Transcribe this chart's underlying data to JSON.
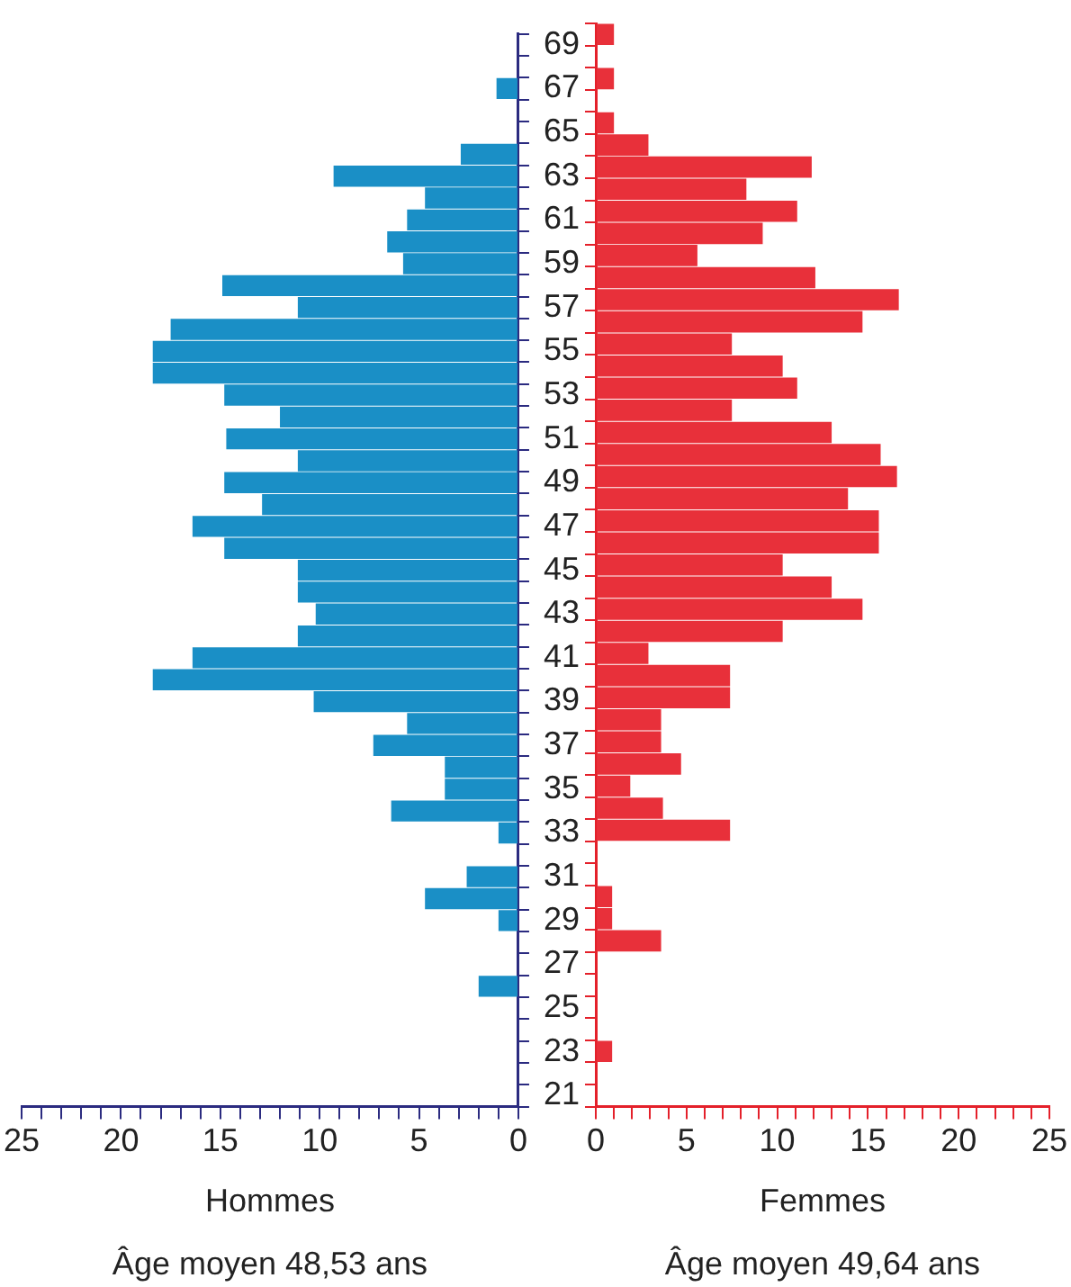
{
  "chart_data": [
    {
      "type": "bar",
      "orientation": "horizontal",
      "xlabel": "Hommes",
      "annotations": [
        "Âge moyen 48,53 ans"
      ],
      "categories": [
        "69",
        null,
        "67",
        null,
        "65",
        null,
        "63",
        null,
        "61",
        null,
        "59",
        null,
        "57",
        null,
        "55",
        null,
        "53",
        null,
        "51",
        null,
        "49",
        null,
        "47",
        null,
        "45",
        null,
        "43",
        null,
        "41",
        null,
        "39",
        null,
        "37",
        null,
        "35",
        null,
        "33",
        null,
        "31",
        null,
        "29",
        null,
        "27",
        null,
        "25",
        null,
        "23",
        null,
        "21"
      ],
      "series": [
        {
          "color": "#1a8fc6",
          "values": [
            null,
            null,
            1.1,
            null,
            null,
            2.9,
            9.3,
            4.7,
            5.6,
            6.6,
            5.8,
            14.9,
            11.1,
            17.5,
            18.4,
            18.4,
            14.8,
            12.0,
            14.7,
            11.1,
            14.8,
            12.9,
            16.4,
            14.8,
            11.1,
            11.1,
            10.2,
            11.1,
            16.4,
            18.4,
            10.3,
            5.6,
            7.3,
            3.7,
            3.7,
            6.4,
            1.0,
            null,
            2.6,
            4.7,
            1.0,
            null,
            null,
            2.0,
            null,
            null,
            null,
            null,
            null
          ]
        }
      ],
      "xlim": [
        25,
        0
      ],
      "xticks": [
        {
          "value": 25,
          "label": "25"
        },
        {
          "value": 24,
          "label": null
        },
        {
          "value": 23,
          "label": null
        },
        {
          "value": 22,
          "label": null
        },
        {
          "value": 21,
          "label": null
        },
        {
          "value": 20,
          "label": "20"
        },
        {
          "value": 19,
          "label": null
        },
        {
          "value": 18,
          "label": null
        },
        {
          "value": 17,
          "label": null
        },
        {
          "value": 16,
          "label": null
        },
        {
          "value": 15,
          "label": "15"
        },
        {
          "value": 14,
          "label": null
        },
        {
          "value": 13,
          "label": null
        },
        {
          "value": 12,
          "label": null
        },
        {
          "value": 11,
          "label": null
        },
        {
          "value": 10,
          "label": "10"
        },
        {
          "value": 9,
          "label": null
        },
        {
          "value": 8,
          "label": null
        },
        {
          "value": 7,
          "label": null
        },
        {
          "value": 6,
          "label": null
        },
        {
          "value": 5,
          "label": "5"
        },
        {
          "value": 4,
          "label": null
        },
        {
          "value": 3,
          "label": null
        },
        {
          "value": 2,
          "label": null
        },
        {
          "value": 1,
          "label": null
        },
        {
          "value": 0,
          "label": "0"
        }
      ],
      "grid": false
    },
    {
      "type": "bar",
      "orientation": "horizontal",
      "xlabel": "Femmes",
      "annotations": [
        "Âge moyen 49,64 ans"
      ],
      "tick_labels": "x",
      "categories": [
        "69",
        null,
        "67",
        null,
        "65",
        null,
        "63",
        null,
        "61",
        null,
        "59",
        null,
        "57",
        null,
        "55",
        null,
        "53",
        null,
        "51",
        null,
        "49",
        null,
        "47",
        null,
        "45",
        null,
        "43",
        null,
        "41",
        null,
        "39",
        null,
        "37",
        null,
        "35",
        null,
        "33",
        null,
        "31",
        null,
        "29",
        null,
        "27",
        null,
        "25",
        null,
        "23",
        null,
        "21"
      ],
      "series": [
        {
          "color": "#e8303a",
          "values": [
            1.0,
            null,
            1.0,
            null,
            1.0,
            2.9,
            11.9,
            8.3,
            11.1,
            9.2,
            5.6,
            12.1,
            16.7,
            14.7,
            7.5,
            10.3,
            11.1,
            7.5,
            13.0,
            15.7,
            16.6,
            13.9,
            15.6,
            15.6,
            10.3,
            13.0,
            14.7,
            10.3,
            2.9,
            7.4,
            7.4,
            3.6,
            3.6,
            4.7,
            1.9,
            3.7,
            7.4,
            null,
            null,
            0.9,
            0.9,
            3.6,
            null,
            null,
            null,
            null,
            0.9,
            null,
            null
          ]
        }
      ],
      "xlim": [
        0,
        25
      ],
      "xticks": [
        {
          "value": 0,
          "label": "0"
        },
        {
          "value": 1,
          "label": null
        },
        {
          "value": 2,
          "label": null
        },
        {
          "value": 3,
          "label": null
        },
        {
          "value": 4,
          "label": null
        },
        {
          "value": 5,
          "label": "5"
        },
        {
          "value": 6,
          "label": null
        },
        {
          "value": 7,
          "label": null
        },
        {
          "value": 8,
          "label": null
        },
        {
          "value": 9,
          "label": null
        },
        {
          "value": 10,
          "label": "10"
        },
        {
          "value": 11,
          "label": null
        },
        {
          "value": 12,
          "label": null
        },
        {
          "value": 13,
          "label": null
        },
        {
          "value": 14,
          "label": null
        },
        {
          "value": 15,
          "label": "15"
        },
        {
          "value": 16,
          "label": null
        },
        {
          "value": 17,
          "label": null
        },
        {
          "value": 18,
          "label": null
        },
        {
          "value": 19,
          "label": null
        },
        {
          "value": 20,
          "label": "20"
        },
        {
          "value": 21,
          "label": null
        },
        {
          "value": 22,
          "label": null
        },
        {
          "value": 23,
          "label": null
        },
        {
          "value": 24,
          "label": null
        },
        {
          "value": 25,
          "label": "25"
        }
      ],
      "grid": false
    }
  ]
}
